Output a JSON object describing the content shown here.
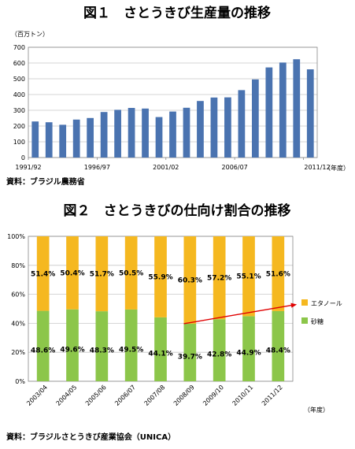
{
  "chart1": {
    "title": "図１　さとうきび生産量の推移",
    "unit_label": "（百万トン）",
    "x_unit_label": "（年度）",
    "source": "資料：ブラジル農務省",
    "y_ticks": [
      "0",
      "100",
      "200",
      "300",
      "400",
      "500",
      "600",
      "700"
    ],
    "x_tick_labels": [
      "1991/92",
      "1996/97",
      "2001/02",
      "2006/07",
      "2011/12"
    ]
  },
  "chart2": {
    "title": "図２　さとうきびの仕向け割合の推移",
    "x_unit_label": "（年度）",
    "source": "資料：ブラジルさとうきび産業協会（UNICA）",
    "y_ticks": [
      "0%",
      "20%",
      "40%",
      "60%",
      "80%",
      "100%"
    ]
  },
  "colors": {
    "bar1": "#4a73b0",
    "ethanol": "#f5b820",
    "sugar": "#8cc64a",
    "trend": "#e00000"
  },
  "chart_data": [
    {
      "type": "bar",
      "title": "図１　さとうきび生産量の推移",
      "ylabel": "（百万トン）",
      "xlabel": "（年度）",
      "ylim": [
        0,
        700
      ],
      "grid": true,
      "categories": [
        "1991/92",
        "1992/93",
        "1993/94",
        "1994/95",
        "1995/96",
        "1996/97",
        "1997/98",
        "1998/99",
        "1999/00",
        "2000/01",
        "2001/02",
        "2002/03",
        "2003/04",
        "2004/05",
        "2005/06",
        "2006/07",
        "2007/08",
        "2008/09",
        "2009/10",
        "2010/11",
        "2011/12"
      ],
      "values": [
        229,
        224,
        208,
        241,
        251,
        289,
        303,
        315,
        311,
        257,
        292,
        316,
        359,
        381,
        382,
        428,
        496,
        572,
        603,
        624,
        560
      ]
    },
    {
      "type": "bar",
      "stacked": true,
      "title": "図２　さとうきびの仕向け割合の推移",
      "xlabel": "（年度）",
      "ylim": [
        0,
        100
      ],
      "grid": true,
      "legend": "right",
      "categories": [
        "2003/04",
        "2004/05",
        "2005/06",
        "2006/07",
        "2007/08",
        "2008/09",
        "2009/10",
        "2010/11",
        "2011/12"
      ],
      "series": [
        {
          "name": "砂糖",
          "values": [
            48.6,
            49.6,
            48.3,
            49.5,
            44.1,
            39.7,
            42.8,
            44.9,
            48.4
          ],
          "labels": [
            "48.6%",
            "49.6%",
            "48.3%",
            "49.5%",
            "44.1%",
            "39.7%",
            "42.8%",
            "44.9%",
            "48.4%"
          ]
        },
        {
          "name": "エタノール",
          "values": [
            51.4,
            50.4,
            51.7,
            50.5,
            55.9,
            60.3,
            57.2,
            55.1,
            51.6
          ],
          "labels": [
            "51.4%",
            "50.4%",
            "51.7%",
            "50.5%",
            "55.9%",
            "60.3%",
            "57.2%",
            "55.1%",
            "51.6%"
          ]
        }
      ],
      "trend_arrow": {
        "from": "2008/09",
        "to": "2011/12",
        "from_value": 39.7,
        "to_value": 53
      }
    }
  ]
}
